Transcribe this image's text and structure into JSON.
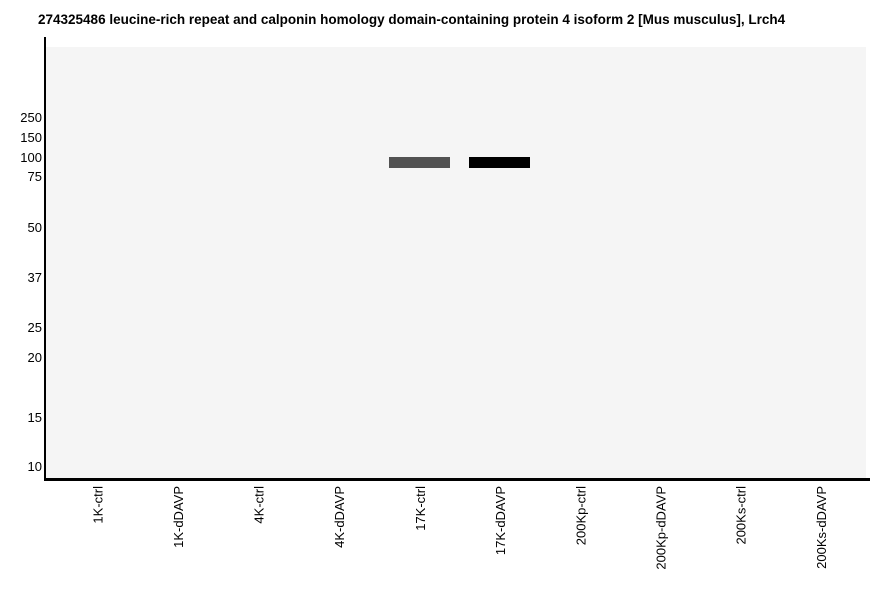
{
  "figure": {
    "title": "274325486 leucine-rich repeat and calponin homology domain-containing protein 4 isoform 2 [Mus musculus], Lrch4"
  },
  "chart_data": {
    "type": "heatmap",
    "subtype": "gel-western-blot-band-plot",
    "title": "274325486 leucine-rich repeat and calponin homology domain-containing protein 4 isoform 2 [Mus musculus], Lrch4",
    "x_categories": [
      "1K-ctrl",
      "1K-dDAVP",
      "4K-ctrl",
      "4K-dDAVP",
      "17K-ctrl",
      "17K-dDAVP",
      "200Kp-ctrl",
      "200Kp-dDAVP",
      "200Ks-ctrl",
      "200Ks-dDAVP"
    ],
    "y_ticks_kda": [
      250,
      150,
      100,
      75,
      50,
      37,
      25,
      20,
      15,
      10
    ],
    "y_scale": "molecular-weight ladder (nonlinear, log-like)",
    "bands": [
      {
        "lane": "17K-ctrl",
        "lane_index": 4,
        "mw_kda": 92,
        "color": "#525252",
        "intensity": "medium"
      },
      {
        "lane": "17K-dDAVP",
        "lane_index": 5,
        "mw_kda": 92,
        "color": "#000000",
        "intensity": "strong"
      }
    ],
    "grid": false,
    "legend": false,
    "colors": {
      "plot_background": "#f5f5f5",
      "axis": "#000000",
      "text": "#000000"
    }
  }
}
